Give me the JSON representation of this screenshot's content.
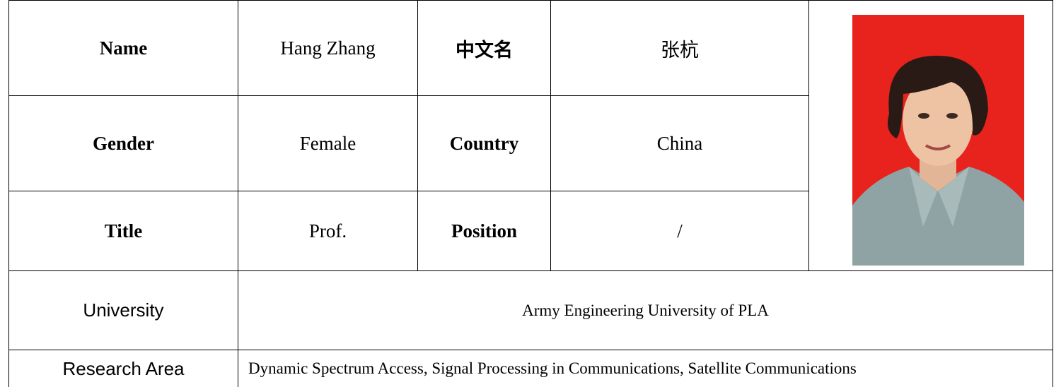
{
  "table": {
    "rows": [
      [
        "Name",
        "Hang Zhang",
        "中文名",
        "张杭"
      ],
      [
        "Gender",
        "Female",
        "Country",
        "China"
      ],
      [
        "Title",
        "Prof.",
        "Position",
        "/"
      ],
      [
        "University",
        "Army Engineering University of PLA"
      ],
      [
        "Research Area",
        "Dynamic Spectrum Access, Signal Processing in Communications, Satellite Communications"
      ]
    ]
  }
}
